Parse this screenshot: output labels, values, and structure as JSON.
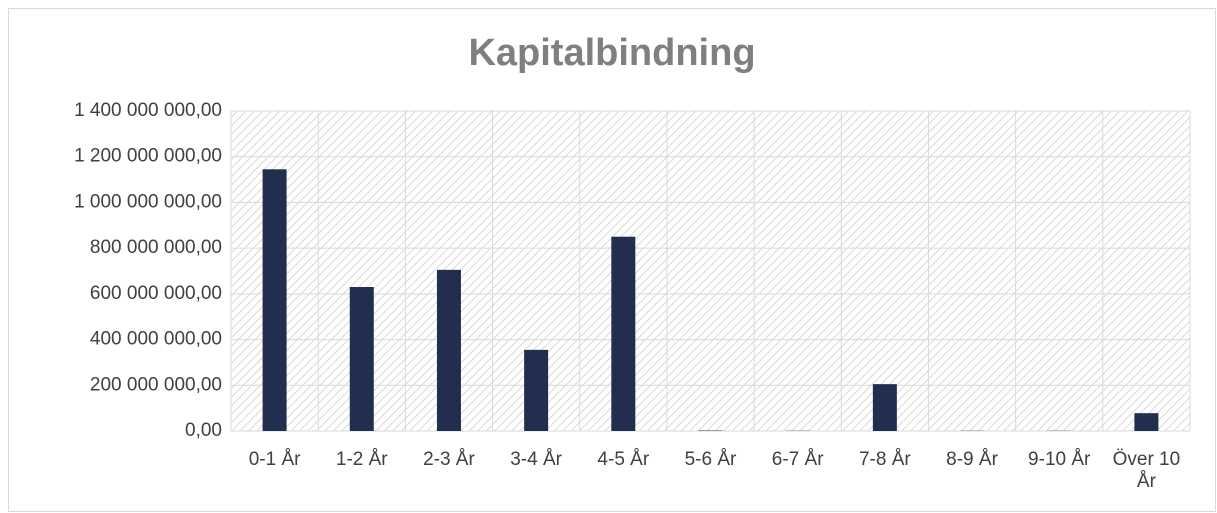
{
  "chart_data": {
    "type": "bar",
    "title": "Kapitalbindning",
    "categories": [
      "0-1 År",
      "1-2 År",
      "2-3 År",
      "3-4 År",
      "4-5 År",
      "5-6 År",
      "6-7 År",
      "7-8 År",
      "8-9 År",
      "9-10 År",
      "Över 10 År"
    ],
    "values": [
      1145000000,
      630000000,
      705000000,
      355000000,
      850000000,
      2000000,
      1000000,
      205000000,
      1000000,
      1000000,
      78000000
    ],
    "color": "#222e50",
    "ylim": [
      0,
      1400000000
    ],
    "yticks": [
      {
        "value": 0,
        "label": "0,00"
      },
      {
        "value": 200000000,
        "label": "200 000 000,00"
      },
      {
        "value": 400000000,
        "label": "400 000 000,00"
      },
      {
        "value": 600000000,
        "label": "600 000 000,00"
      },
      {
        "value": 800000000,
        "label": "800 000 000,00"
      },
      {
        "value": 1000000000,
        "label": "1 000 000 000,00"
      },
      {
        "value": 1200000000,
        "label": "1 200 000 000,00"
      },
      {
        "value": 1400000000,
        "label": "1 400 000 000,00"
      }
    ],
    "grid": true
  }
}
